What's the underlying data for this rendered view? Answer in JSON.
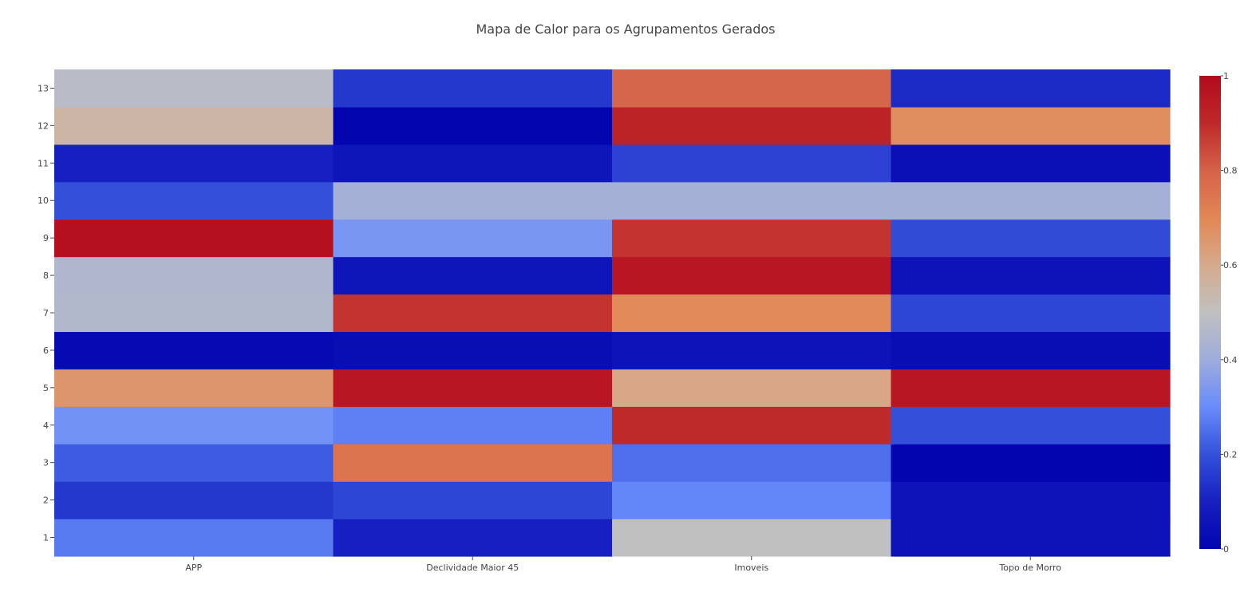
{
  "chart_data": {
    "type": "heatmap",
    "title": "Mapa de Calor para os Agrupamentos Gerados",
    "x_categories": [
      "APP",
      "Declividade Maior 45",
      "Imoveis",
      "Topo de Morro"
    ],
    "y_categories": [
      "1",
      "2",
      "3",
      "4",
      "5",
      "6",
      "7",
      "8",
      "9",
      "10",
      "11",
      "12",
      "13"
    ],
    "z": [
      [
        0.27,
        0.1,
        0.5,
        0.05
      ],
      [
        0.15,
        0.18,
        0.29,
        0.05
      ],
      [
        0.22,
        0.75,
        0.25,
        0.0
      ],
      [
        0.32,
        0.28,
        0.9,
        0.2
      ],
      [
        0.66,
        0.96,
        0.61,
        0.96
      ],
      [
        0.02,
        0.03,
        0.05,
        0.03
      ],
      [
        0.46,
        0.88,
        0.69,
        0.18
      ],
      [
        0.45,
        0.06,
        0.96,
        0.05
      ],
      [
        0.98,
        0.33,
        0.88,
        0.19
      ],
      [
        0.2,
        0.42,
        0.42,
        0.42
      ],
      [
        0.1,
        0.06,
        0.17,
        0.04
      ],
      [
        0.55,
        0.0,
        0.92,
        0.68
      ],
      [
        0.48,
        0.15,
        0.79,
        0.12
      ]
    ],
    "colorscale": "coolwarm",
    "zlim": [
      0,
      1
    ],
    "colorbar_ticks": [
      "0",
      "0.2",
      "0.4",
      "0.6",
      "0.8",
      "1"
    ],
    "legend": "right"
  }
}
